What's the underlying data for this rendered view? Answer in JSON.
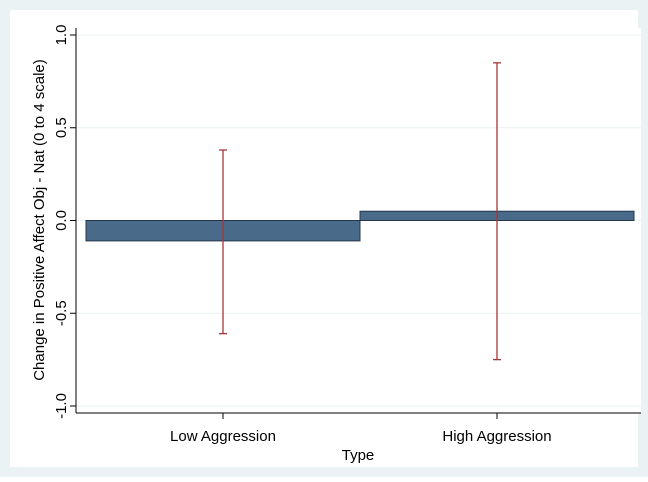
{
  "colors": {
    "outer_background": "#eaf2f3",
    "plot_background": "#ffffff",
    "bar_fill": "#4a6a8a",
    "bar_stroke": "#23384d",
    "error_bar": "#a8353a",
    "grid": "#eaf2f3",
    "axis": "#000000"
  },
  "chart_data": {
    "type": "bar",
    "title": "",
    "xlabel": "Type",
    "ylabel": "Change in Positive Affect Obj - Nat (0 to 4 scale)",
    "categories": [
      "Low Aggression",
      "High Aggression"
    ],
    "values": [
      -0.11,
      0.05
    ],
    "error_low": [
      -0.61,
      -0.75
    ],
    "error_high": [
      0.38,
      0.85
    ],
    "ylim": [
      -1.0,
      1.0
    ],
    "yticks": [
      -1.0,
      -0.5,
      0.0,
      0.5,
      1.0
    ],
    "ytick_labels": [
      "-1.0",
      "-0.5",
      "0.0",
      "0.5",
      "1.0"
    ],
    "grid": true,
    "legend": "none"
  }
}
